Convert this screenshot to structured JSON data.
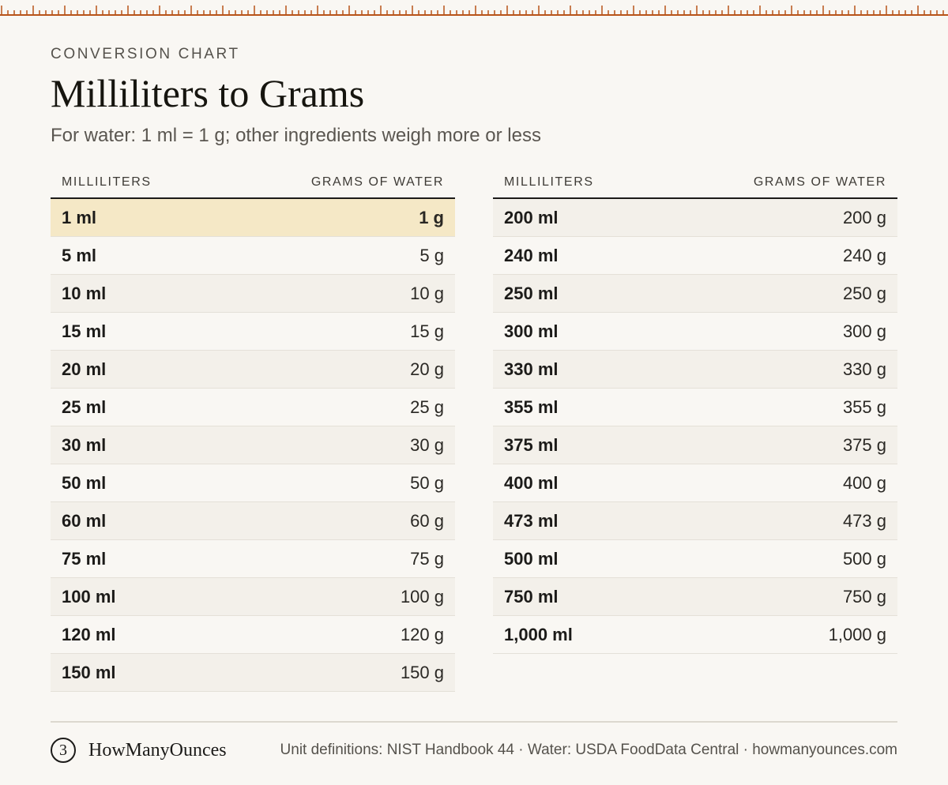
{
  "header": {
    "eyebrow": "CONVERSION CHART",
    "title": "Milliliters to Grams",
    "subtitle": "For water: 1 ml = 1 g; other ingredients weigh more or less"
  },
  "table": {
    "col_ml": "MILLILITERS",
    "col_g": "GRAMS OF WATER",
    "left_rows": [
      {
        "ml": "1 ml",
        "g": "1 g"
      },
      {
        "ml": "5 ml",
        "g": "5 g"
      },
      {
        "ml": "10 ml",
        "g": "10 g"
      },
      {
        "ml": "15 ml",
        "g": "15 g"
      },
      {
        "ml": "20 ml",
        "g": "20 g"
      },
      {
        "ml": "25 ml",
        "g": "25 g"
      },
      {
        "ml": "30 ml",
        "g": "30 g"
      },
      {
        "ml": "50 ml",
        "g": "50 g"
      },
      {
        "ml": "60 ml",
        "g": "60 g"
      },
      {
        "ml": "75 ml",
        "g": "75 g"
      },
      {
        "ml": "100 ml",
        "g": "100 g"
      },
      {
        "ml": "120 ml",
        "g": "120 g"
      },
      {
        "ml": "150 ml",
        "g": "150 g"
      }
    ],
    "right_rows": [
      {
        "ml": "200 ml",
        "g": "200 g"
      },
      {
        "ml": "240 ml",
        "g": "240 g"
      },
      {
        "ml": "250 ml",
        "g": "250 g"
      },
      {
        "ml": "300 ml",
        "g": "300 g"
      },
      {
        "ml": "330 ml",
        "g": "330 g"
      },
      {
        "ml": "355 ml",
        "g": "355 g"
      },
      {
        "ml": "375 ml",
        "g": "375 g"
      },
      {
        "ml": "400 ml",
        "g": "400 g"
      },
      {
        "ml": "473 ml",
        "g": "473 g"
      },
      {
        "ml": "500 ml",
        "g": "500 g"
      },
      {
        "ml": "750 ml",
        "g": "750 g"
      },
      {
        "ml": "1,000 ml",
        "g": "1,000 g"
      }
    ]
  },
  "footer": {
    "logo_mark": "3",
    "logo_text": "HowManyOunces",
    "sources": "Unit definitions: NIST Handbook 44 · Water: USDA FoodData Central · howmanyounces.com"
  },
  "colors": {
    "background": "#f9f7f3",
    "ruler": "#b8541a",
    "highlight_row": "#f5e8c6",
    "stripe_row": "#f3f0ea"
  },
  "icons": {
    "ruler": "ruler-ticks",
    "logo": "circled-3-logo"
  }
}
